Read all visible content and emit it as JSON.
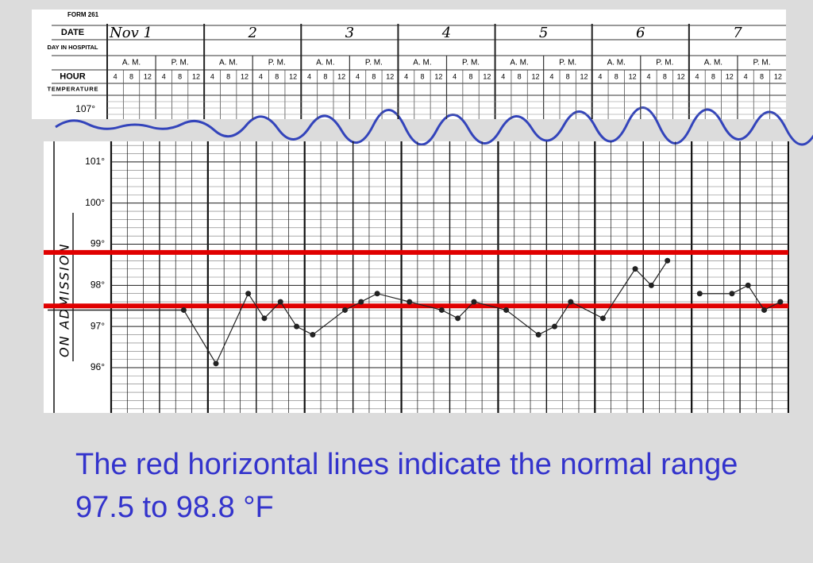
{
  "form": {
    "form_number": "FORM 261",
    "row_labels": [
      "DATE",
      "DAY IN HOSPITAL",
      "HOUR",
      "TEMPERATURE"
    ],
    "dates": [
      "Nov 1",
      "2",
      "3",
      "4",
      "5",
      "6",
      "7"
    ],
    "periods": [
      "A. M.",
      "P. M."
    ],
    "hours": [
      "4",
      "8",
      "12"
    ],
    "top_temperature": "107°"
  },
  "chart_data": {
    "type": "line",
    "annotation": "ON ADMISSION",
    "color": "#222222",
    "x": [
      20,
      28,
      36,
      40,
      44,
      48,
      52,
      60,
      64,
      68,
      76,
      84,
      88,
      92,
      100,
      108,
      112,
      116,
      124,
      132,
      136,
      140,
      144,
      148,
      156,
      160,
      164,
      168
    ],
    "values": [
      97.4,
      96.1,
      97.8,
      97.2,
      97.6,
      97.0,
      96.8,
      97.4,
      97.6,
      97.8,
      97.6,
      97.4,
      97.2,
      97.6,
      97.4,
      96.8,
      97.0,
      97.6,
      97.2,
      98.4,
      98.0,
      98.6,
      null,
      97.8,
      97.8,
      98.0,
      97.4,
      97.6
    ],
    "xlim": [
      2,
      170
    ],
    "ylim": [
      94.9,
      101.5
    ],
    "yticks": [
      {
        "value": 96,
        "label": "96°"
      },
      {
        "value": 97,
        "label": "97°"
      },
      {
        "value": 98,
        "label": "98°"
      },
      {
        "value": 99,
        "label": "99°"
      },
      {
        "value": 100,
        "label": "100°"
      },
      {
        "value": 101,
        "label": "101°"
      }
    ],
    "reference_lines": {
      "values": [
        97.5,
        98.8
      ],
      "color": "#e00000"
    }
  },
  "caption": "The red horizontal lines indicate the normal range 97.5 to 98.8 °F"
}
